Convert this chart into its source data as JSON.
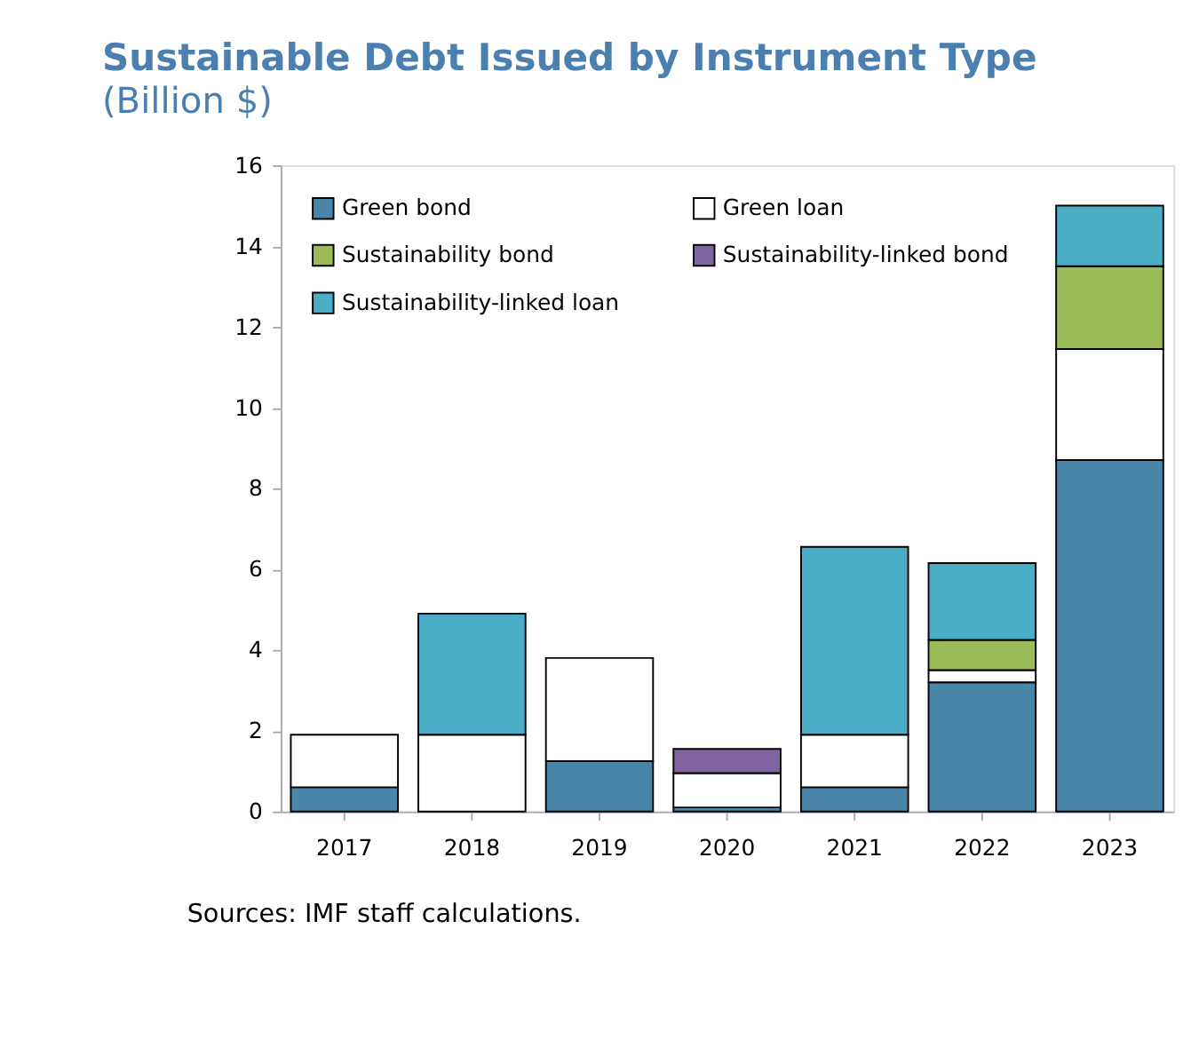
{
  "chart_data": {
    "type": "bar",
    "stacked": true,
    "title": "Sustainable Debt Issued by Instrument Type",
    "subtitle": "(Billion $)",
    "categories": [
      "2017",
      "2018",
      "2019",
      "2020",
      "2021",
      "2022",
      "2023"
    ],
    "series": [
      {
        "name": "Green bond",
        "color": "#4a86aa",
        "values": [
          0.6,
          null,
          1.25,
          0.1,
          0.6,
          3.2,
          8.7
        ]
      },
      {
        "name": "Green loan",
        "color": "#ffffff",
        "values": [
          1.3,
          1.9,
          2.55,
          0.85,
          1.3,
          0.3,
          2.75
        ]
      },
      {
        "name": "Sustainability bond",
        "color": "#9bbb59",
        "values": [
          null,
          null,
          null,
          null,
          null,
          0.75,
          2.05
        ]
      },
      {
        "name": "Sustainability-linked bond",
        "color": "#8064a2",
        "values": [
          null,
          null,
          null,
          0.6,
          null,
          null,
          null
        ]
      },
      {
        "name": "Sustainability-linked loan",
        "color": "#4bacc6",
        "values": [
          null,
          3.0,
          null,
          null,
          4.65,
          1.9,
          1.5
        ]
      }
    ],
    "ylim": [
      0,
      16
    ],
    "yticks": [
      0,
      2,
      4,
      6,
      8,
      10,
      12,
      14,
      16
    ],
    "grid": false,
    "legend": "top left",
    "annotations": [
      "Sources: IMF staff calculations."
    ]
  }
}
